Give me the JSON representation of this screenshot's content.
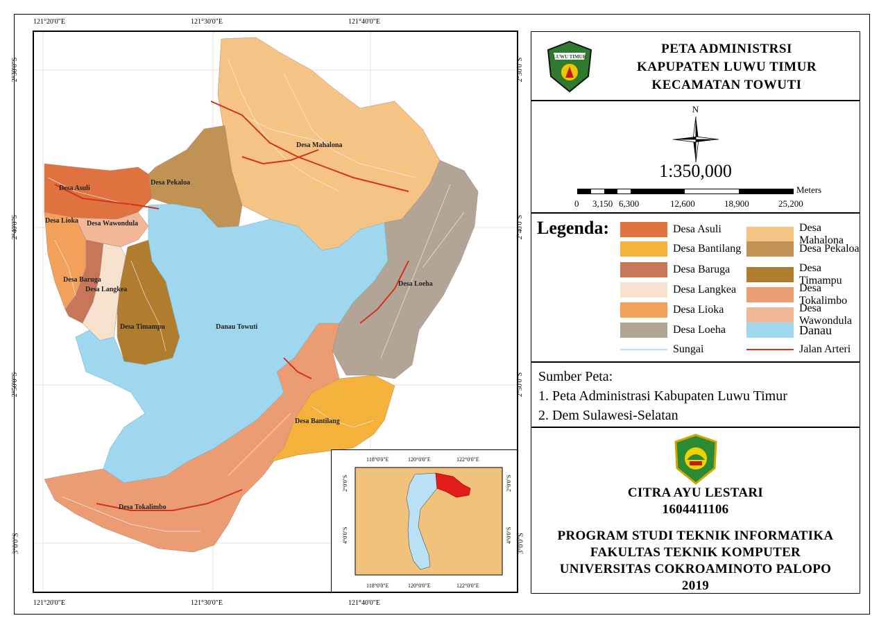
{
  "map": {
    "top_coords": [
      "121°20'0\"E",
      "121°30'0\"E",
      "121°40'0\"E"
    ],
    "bottom_coords": [
      "121°20'0\"E",
      "121°30'0\"E",
      "121°40'0\"E"
    ],
    "left_coords": [
      "2°30'0\"S",
      "2°40'0\"S",
      "2°50'0\"S",
      "3°0'0\"S"
    ],
    "right_coords": [
      "2°30'0\"S",
      "2°40'0\"S",
      "2°50'0\"S",
      "3°0'0\"S"
    ],
    "labels": {
      "mahalona": "Desa Mahalona",
      "pekaloa": "Desa Pekaloa",
      "asuli": "Desa Asuli",
      "lioka": "Desa Lioka",
      "wawondula": "Desa Wawondula",
      "baruga": "Desa Baruga",
      "langkea": "Desa Langkea",
      "timampu": "Desa Timampu",
      "danau": "Danau Towuti",
      "loeha": "Desa Loeha",
      "bantilang": "Desa Bantilang",
      "tokalimbo": "Desa Tokalimbo"
    },
    "inset": {
      "top_coords": [
        "118°0'0\"E",
        "120°0'0\"E",
        "122°0'0\"E"
      ],
      "bottom_coords": [
        "118°0'0\"E",
        "120°0'0\"E",
        "122°0'0\"E"
      ],
      "left_coords": [
        "2°0'0\"S",
        "4°0'0\"S"
      ],
      "right_coords": [
        "2°0'0\"S",
        "4°0'0\"S"
      ]
    }
  },
  "title": {
    "line1": "PETA ADMINISTRSI",
    "line2": "KAPUPATEN LUWU TIMUR",
    "line3": "KECAMATAN TOWUTI",
    "logo_text": "LUWU TIMUR"
  },
  "north": {
    "letter": "N"
  },
  "scale": {
    "ratio": "1:350,000",
    "unit": "Meters",
    "ticks": [
      "0",
      "3,150",
      "6,300",
      "12,600",
      "18,900",
      "25,200"
    ]
  },
  "legend": {
    "title": "Legenda:",
    "items": [
      {
        "label": "Desa Asuli",
        "color": "#e0723f"
      },
      {
        "label": "Desa Bantilang",
        "color": "#f4b23a"
      },
      {
        "label": "Desa Baruga",
        "color": "#c8765a"
      },
      {
        "label": "Desa Langkea",
        "color": "#f6e1cc"
      },
      {
        "label": "Desa Lioka",
        "color": "#f2a05a"
      },
      {
        "label": "Desa Loeha",
        "color": "#b3a595"
      },
      {
        "label": "Desa Mahalona",
        "color": "#f5c383"
      },
      {
        "label": "Desa Pekaloa",
        "color": "#c09253"
      },
      {
        "label": "Desa Timampu",
        "color": "#b07c2e"
      },
      {
        "label": "Desa Tokalimbo",
        "color": "#eb9c72"
      },
      {
        "label": "Desa Wawondula",
        "color": "#f1b797"
      },
      {
        "label": "Danau",
        "color": "#9fd8ee"
      }
    ],
    "lines": [
      {
        "label": "Sungai",
        "color": "#b9dcf0"
      },
      {
        "label": "Jalan Arteri",
        "color": "#d4321c"
      }
    ]
  },
  "source": {
    "title": "Sumber Peta:",
    "items": [
      "1. Peta Administrasi Kabupaten Luwu Timur",
      "2. Dem Sulawesi-Selatan"
    ]
  },
  "author": {
    "name": "CITRA AYU LESTARI",
    "id": "1604411106",
    "program": "PROGRAM STUDI TEKNIK INFORMATIKA",
    "faculty": "FAKULTAS TEKNIK KOMPUTER",
    "university": "UNIVERSITAS COKROAMINOTO PALOPO",
    "year": "2019"
  }
}
